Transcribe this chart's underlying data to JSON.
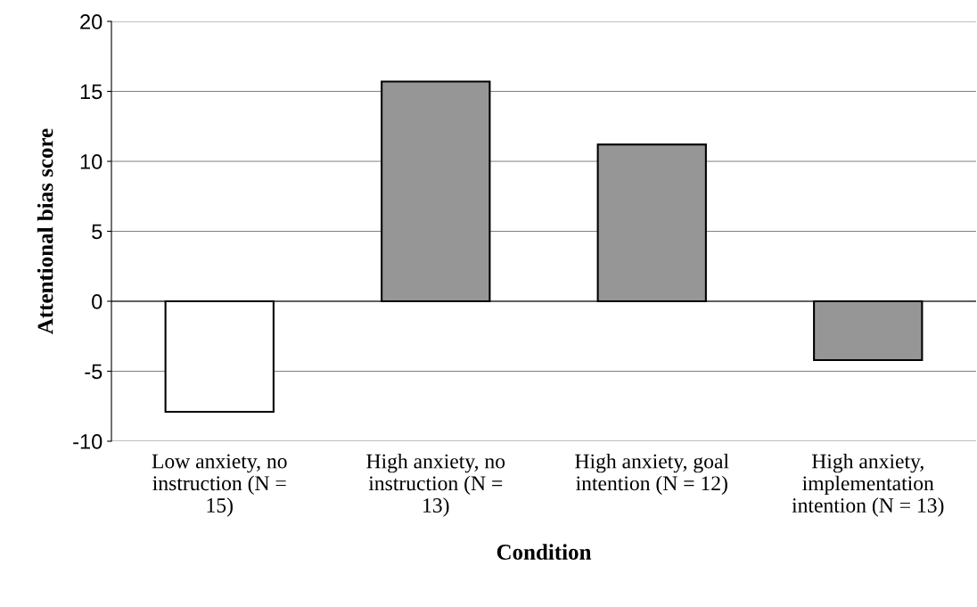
{
  "chart_data": {
    "type": "bar",
    "categories": [
      "Low anxiety, no\ninstruction (N =\n15)",
      "High anxiety, no\ninstruction (N =\n13)",
      "High anxiety, goal\nintention (N = 12)",
      "High anxiety,\nimplementation\nintention (N = 13)"
    ],
    "values": [
      -7.9,
      15.7,
      11.2,
      -4.2
    ],
    "colors": [
      "#ffffff",
      "#969696",
      "#969696",
      "#969696"
    ],
    "xlabel": "Condition",
    "ylabel": "Attentional bias score",
    "ylim": [
      -10,
      20
    ],
    "yticks": [
      -10,
      -5,
      0,
      5,
      10,
      15,
      20
    ],
    "grid": "y",
    "legend": false
  }
}
